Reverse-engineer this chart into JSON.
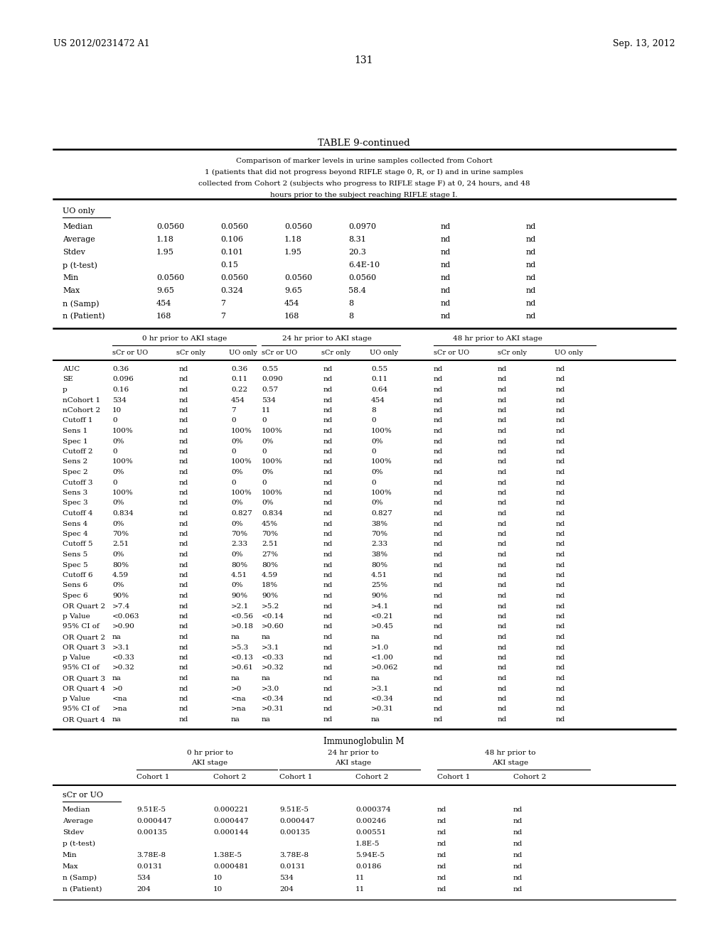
{
  "header_left": "US 2012/0231472 A1",
  "header_right": "Sep. 13, 2012",
  "page_number": "131",
  "table_title": "TABLE 9-continued",
  "table_description": "Comparison of marker levels in urine samples collected from Cohort\n1 (patients that did not progress beyond RIFLE stage 0, R, or I) and in urine samples\ncollected from Cohort 2 (subjects who progress to RIFLE stage F) at 0, 24 hours, and 48\nhours prior to the subject reaching RIFLE stage I.",
  "uo_only_label": "UO only",
  "uo_rows": [
    [
      "Median",
      "0.0560",
      "0.0560",
      "0.0560",
      "0.0970",
      "nd",
      "nd"
    ],
    [
      "Average",
      "1.18",
      "0.106",
      "1.18",
      "8.31",
      "nd",
      "nd"
    ],
    [
      "Stdev",
      "1.95",
      "0.101",
      "1.95",
      "20.3",
      "nd",
      "nd"
    ],
    [
      "p (t-test)",
      "",
      "0.15",
      "",
      "6.4E-10",
      "nd",
      "nd"
    ],
    [
      "Min",
      "0.0560",
      "0.0560",
      "0.0560",
      "0.0560",
      "nd",
      "nd"
    ],
    [
      "Max",
      "9.65",
      "0.324",
      "9.65",
      "58.4",
      "nd",
      "nd"
    ],
    [
      "n (Samp)",
      "454",
      "7",
      "454",
      "8",
      "nd",
      "nd"
    ],
    [
      "n (Patient)",
      "168",
      "7",
      "168",
      "8",
      "nd",
      "nd"
    ]
  ],
  "section2_headers": [
    "0 hr prior to AKI stage",
    "24 hr prior to AKI stage",
    "48 hr prior to AKI stage"
  ],
  "section2_subheaders": [
    "sCr or UO",
    "sCr only",
    "UO only",
    "sCr or UO",
    "sCr only",
    "UO only",
    "sCr or UO",
    "sCr only",
    "UO only"
  ],
  "section2_rows": [
    [
      "AUC",
      "0.36",
      "nd",
      "0.36",
      "0.55",
      "nd",
      "0.55",
      "nd",
      "nd",
      "nd"
    ],
    [
      "SE",
      "0.096",
      "nd",
      "0.11",
      "0.090",
      "nd",
      "0.11",
      "nd",
      "nd",
      "nd"
    ],
    [
      "p",
      "0.16",
      "nd",
      "0.22",
      "0.57",
      "nd",
      "0.64",
      "nd",
      "nd",
      "nd"
    ],
    [
      "nCohort 1",
      "534",
      "nd",
      "454",
      "534",
      "nd",
      "454",
      "nd",
      "nd",
      "nd"
    ],
    [
      "nCohort 2",
      "10",
      "nd",
      "7",
      "11",
      "nd",
      "8",
      "nd",
      "nd",
      "nd"
    ],
    [
      "Cutoff 1",
      "0",
      "nd",
      "0",
      "0",
      "nd",
      "0",
      "nd",
      "nd",
      "nd"
    ],
    [
      "Sens 1",
      "100%",
      "nd",
      "100%",
      "100%",
      "nd",
      "100%",
      "nd",
      "nd",
      "nd"
    ],
    [
      "Spec 1",
      "0%",
      "nd",
      "0%",
      "0%",
      "nd",
      "0%",
      "nd",
      "nd",
      "nd"
    ],
    [
      "Cutoff 2",
      "0",
      "nd",
      "0",
      "0",
      "nd",
      "0",
      "nd",
      "nd",
      "nd"
    ],
    [
      "Sens 2",
      "100%",
      "nd",
      "100%",
      "100%",
      "nd",
      "100%",
      "nd",
      "nd",
      "nd"
    ],
    [
      "Spec 2",
      "0%",
      "nd",
      "0%",
      "0%",
      "nd",
      "0%",
      "nd",
      "nd",
      "nd"
    ],
    [
      "Cutoff 3",
      "0",
      "nd",
      "0",
      "0",
      "nd",
      "0",
      "nd",
      "nd",
      "nd"
    ],
    [
      "Sens 3",
      "100%",
      "nd",
      "100%",
      "100%",
      "nd",
      "100%",
      "nd",
      "nd",
      "nd"
    ],
    [
      "Spec 3",
      "0%",
      "nd",
      "0%",
      "0%",
      "nd",
      "0%",
      "nd",
      "nd",
      "nd"
    ],
    [
      "Cutoff 4",
      "0.834",
      "nd",
      "0.827",
      "0.834",
      "nd",
      "0.827",
      "nd",
      "nd",
      "nd"
    ],
    [
      "Sens 4",
      "0%",
      "nd",
      "0%",
      "45%",
      "nd",
      "38%",
      "nd",
      "nd",
      "nd"
    ],
    [
      "Spec 4",
      "70%",
      "nd",
      "70%",
      "70%",
      "nd",
      "70%",
      "nd",
      "nd",
      "nd"
    ],
    [
      "Cutoff 5",
      "2.51",
      "nd",
      "2.33",
      "2.51",
      "nd",
      "2.33",
      "nd",
      "nd",
      "nd"
    ],
    [
      "Sens 5",
      "0%",
      "nd",
      "0%",
      "27%",
      "nd",
      "38%",
      "nd",
      "nd",
      "nd"
    ],
    [
      "Spec 5",
      "80%",
      "nd",
      "80%",
      "80%",
      "nd",
      "80%",
      "nd",
      "nd",
      "nd"
    ],
    [
      "Cutoff 6",
      "4.59",
      "nd",
      "4.51",
      "4.59",
      "nd",
      "4.51",
      "nd",
      "nd",
      "nd"
    ],
    [
      "Sens 6",
      "0%",
      "nd",
      "0%",
      "18%",
      "nd",
      "25%",
      "nd",
      "nd",
      "nd"
    ],
    [
      "Spec 6",
      "90%",
      "nd",
      "90%",
      "90%",
      "nd",
      "90%",
      "nd",
      "nd",
      "nd"
    ],
    [
      "OR Quart 2",
      ">7.4",
      "nd",
      ">2.1",
      ">5.2",
      "nd",
      ">4.1",
      "nd",
      "nd",
      "nd"
    ],
    [
      "p Value",
      "<0.063",
      "nd",
      "<0.56",
      "<0.14",
      "nd",
      "<0.21",
      "nd",
      "nd",
      "nd"
    ],
    [
      "95% CI of",
      ">0.90",
      "nd",
      ">0.18",
      ">0.60",
      "nd",
      ">0.45",
      "nd",
      "nd",
      "nd"
    ],
    [
      "OR Quart 2",
      "na",
      "nd",
      "na",
      "na",
      "nd",
      "na",
      "nd",
      "nd",
      "nd"
    ],
    [
      "OR Quart 3",
      ">3.1",
      "nd",
      ">5.3",
      ">3.1",
      "nd",
      ">1.0",
      "nd",
      "nd",
      "nd"
    ],
    [
      "p Value",
      "<0.33",
      "nd",
      "<0.13",
      "<0.33",
      "nd",
      "<1.00",
      "nd",
      "nd",
      "nd"
    ],
    [
      "95% CI of",
      ">0.32",
      "nd",
      ">0.61",
      ">0.32",
      "nd",
      ">0.062",
      "nd",
      "nd",
      "nd"
    ],
    [
      "OR Quart 3",
      "na",
      "nd",
      "na",
      "na",
      "nd",
      "na",
      "nd",
      "nd",
      "nd"
    ],
    [
      "OR Quart 4",
      ">0",
      "nd",
      ">0",
      ">3.0",
      "nd",
      ">3.1",
      "nd",
      "nd",
      "nd"
    ],
    [
      "p Value",
      "<na",
      "nd",
      "<na",
      "<0.34",
      "nd",
      "<0.34",
      "nd",
      "nd",
      "nd"
    ],
    [
      "95% CI of",
      ">na",
      "nd",
      ">na",
      ">0.31",
      "nd",
      ">0.31",
      "nd",
      "nd",
      "nd"
    ],
    [
      "OR Quart 4",
      "na",
      "nd",
      "na",
      "na",
      "nd",
      "na",
      "nd",
      "nd",
      "nd"
    ]
  ],
  "section3_title": "Immunoglobulin M",
  "section3_headers": [
    "0 hr prior to\nAKI stage",
    "24 hr prior to\nAKI stage",
    "48 hr prior to\nAKI stage"
  ],
  "section3_subheaders": [
    "Cohort 1",
    "Cohort 2",
    "Cohort 1",
    "Cohort 2",
    "Cohort 1",
    "Cohort 2"
  ],
  "section3_group": "sCr or UO",
  "section3_rows": [
    [
      "Median",
      "9.51E-5",
      "0.000221",
      "9.51E-5",
      "0.000374",
      "nd",
      "nd"
    ],
    [
      "Average",
      "0.000447",
      "0.000447",
      "0.000447",
      "0.00246",
      "nd",
      "nd"
    ],
    [
      "Stdev",
      "0.00135",
      "0.000144",
      "0.00135",
      "0.00551",
      "nd",
      "nd"
    ],
    [
      "p (t-test)",
      "",
      "",
      "",
      "1.8E-5",
      "nd",
      "nd"
    ],
    [
      "Min",
      "3.78E-8",
      "1.38E-5",
      "3.78E-8",
      "5.94E-5",
      "nd",
      "nd"
    ],
    [
      "Max",
      "0.0131",
      "0.000481",
      "0.0131",
      "0.0186",
      "nd",
      "nd"
    ],
    [
      "n (Samp)",
      "534",
      "10",
      "534",
      "11",
      "nd",
      "nd"
    ],
    [
      "n (Patient)",
      "204",
      "10",
      "204",
      "11",
      "nd",
      "nd"
    ]
  ]
}
